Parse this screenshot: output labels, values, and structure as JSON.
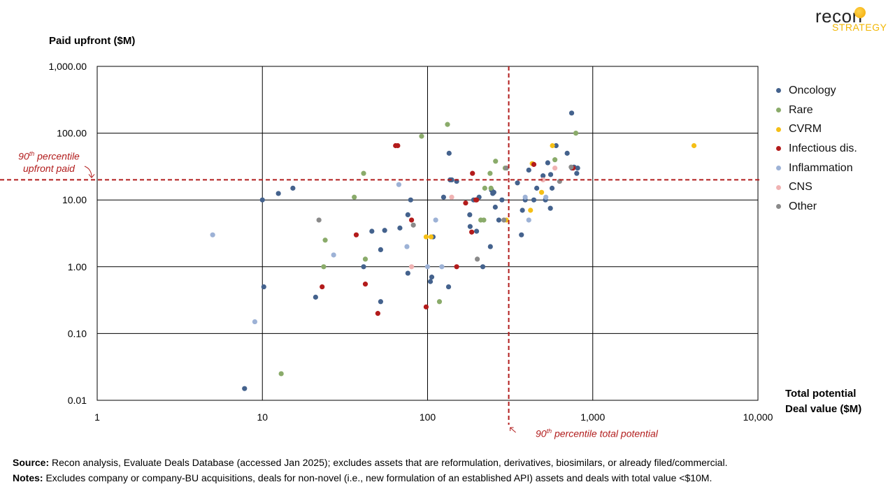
{
  "brand": {
    "top": "recon",
    "bottom": "STRATEGY"
  },
  "footer": {
    "source_label": "Source:",
    "source_text": " Recon analysis, Evaluate Deals Database (accessed Jan 2025); excludes assets that are reformulation, derivatives, biosimilars, or already filed/commercial.",
    "notes_label": "Notes:",
    "notes_text": " Excludes company or company-BU acquisitions, deals for non-novel (i.e., new formulation of an established API) assets and deals with total value <$10M."
  },
  "chart_data": {
    "type": "scatter",
    "ylabel": "Paid upfront ($M)",
    "xlabel": [
      "Total potential",
      "Deal value ($M)"
    ],
    "x_scale": "log",
    "y_scale": "log",
    "xlim": [
      1,
      10000
    ],
    "ylim": [
      0.01,
      1000
    ],
    "x_ticks": [
      1,
      10,
      100,
      1000,
      10000
    ],
    "x_tick_labels": [
      "1",
      "10",
      "100",
      "1,000",
      "10,000"
    ],
    "y_ticks": [
      0.01,
      0.1,
      1,
      10,
      100,
      1000
    ],
    "y_tick_labels": [
      "0.01",
      "0.10",
      "1.00",
      "10.00",
      "100.00",
      "1,000.00"
    ],
    "grid": true,
    "legend_position": "right",
    "reference_lines": [
      {
        "axis": "x",
        "value": 310,
        "label": [
          "90th percentile total potential"
        ],
        "color": "#b21d1d"
      },
      {
        "axis": "y",
        "value": 20,
        "label": [
          "90th percentile",
          "upfront paid"
        ],
        "color": "#b21d1d"
      }
    ],
    "series": [
      {
        "name": "Oncology",
        "color": "#44628d",
        "points": [
          [
            7.8,
            0.015
          ],
          [
            10,
            10
          ],
          [
            10.2,
            0.5
          ],
          [
            12.5,
            12.5
          ],
          [
            15.3,
            15
          ],
          [
            21,
            0.35
          ],
          [
            41,
            1
          ],
          [
            46,
            3.4
          ],
          [
            52,
            0.3
          ],
          [
            52,
            1.8
          ],
          [
            55,
            3.5
          ],
          [
            68,
            3.8
          ],
          [
            76,
            0.8
          ],
          [
            76,
            6
          ],
          [
            79,
            10
          ],
          [
            104,
            0.6
          ],
          [
            106,
            0.7
          ],
          [
            108,
            2.8
          ],
          [
            125,
            11
          ],
          [
            134,
            0.5
          ],
          [
            135,
            50
          ],
          [
            137,
            20
          ],
          [
            140,
            20
          ],
          [
            150,
            19
          ],
          [
            180,
            6
          ],
          [
            181,
            4
          ],
          [
            190,
            10
          ],
          [
            198,
            3.4
          ],
          [
            205,
            11
          ],
          [
            216,
            1
          ],
          [
            240,
            2
          ],
          [
            244,
            14
          ],
          [
            248,
            12.5
          ],
          [
            252,
            13
          ],
          [
            257,
            7.8
          ],
          [
            270,
            5
          ],
          [
            282,
            10
          ],
          [
            350,
            18
          ],
          [
            370,
            3
          ],
          [
            375,
            7
          ],
          [
            390,
            10
          ],
          [
            410,
            28
          ],
          [
            440,
            10
          ],
          [
            458,
            15
          ],
          [
            500,
            23
          ],
          [
            517,
            10
          ],
          [
            534,
            36
          ],
          [
            556,
            24
          ],
          [
            554,
            7.5
          ],
          [
            567,
            15
          ],
          [
            600,
            65
          ],
          [
            700,
            50
          ],
          [
            745,
            200
          ],
          [
            748,
            30
          ],
          [
            770,
            31
          ],
          [
            800,
            25
          ],
          [
            810,
            30
          ]
        ]
      },
      {
        "name": "Rare",
        "color": "#8aab6a",
        "points": [
          [
            13,
            0.025
          ],
          [
            24,
            2.5
          ],
          [
            23.5,
            1
          ],
          [
            36,
            11
          ],
          [
            41,
            25
          ],
          [
            42,
            1.3
          ],
          [
            92,
            90
          ],
          [
            118,
            0.3
          ],
          [
            132,
            135
          ],
          [
            210,
            5
          ],
          [
            219,
            5
          ],
          [
            222,
            15
          ],
          [
            239,
            25
          ],
          [
            242,
            15
          ],
          [
            258,
            38
          ],
          [
            295,
            30
          ],
          [
            590,
            40
          ],
          [
            790,
            100
          ]
        ]
      },
      {
        "name": "CVRM",
        "color": "#f5bf16",
        "points": [
          [
            98,
            2.8
          ],
          [
            105,
            2.8
          ],
          [
            300,
            5
          ],
          [
            420,
            7
          ],
          [
            430,
            35
          ],
          [
            490,
            13
          ],
          [
            570,
            65
          ],
          [
            4100,
            65
          ]
        ]
      },
      {
        "name": "Infectious dis.",
        "color": "#b31b1b",
        "points": [
          [
            23,
            0.5
          ],
          [
            37,
            3
          ],
          [
            42,
            0.55
          ],
          [
            50,
            0.2
          ],
          [
            64,
            65
          ],
          [
            66,
            65
          ],
          [
            80,
            5
          ],
          [
            98,
            0.25
          ],
          [
            150,
            1
          ],
          [
            170,
            9
          ],
          [
            185,
            3.3
          ],
          [
            187,
            25
          ],
          [
            196,
            10
          ],
          [
            198,
            10
          ],
          [
            440,
            34
          ],
          [
            760,
            30
          ]
        ]
      },
      {
        "name": "Inflammation",
        "color": "#9db2d6",
        "points": [
          [
            5,
            3
          ],
          [
            9,
            0.15
          ],
          [
            27,
            1.5
          ],
          [
            67,
            17
          ],
          [
            75,
            2
          ],
          [
            100,
            1
          ],
          [
            112,
            5
          ],
          [
            122,
            1
          ],
          [
            390,
            11
          ],
          [
            410,
            5
          ],
          [
            520,
            11
          ]
        ]
      },
      {
        "name": "CNS",
        "color": "#f0b3b3",
        "points": [
          [
            80,
            1
          ],
          [
            140,
            11
          ],
          [
            500,
            20
          ],
          [
            590,
            30
          ]
        ]
      },
      {
        "name": "Other",
        "color": "#8a8a8a",
        "points": [
          [
            22,
            5
          ],
          [
            82,
            4.2
          ],
          [
            200,
            1.3
          ],
          [
            290,
            5
          ],
          [
            300,
            30
          ],
          [
            630,
            19
          ],
          [
            740,
            31
          ]
        ]
      }
    ]
  }
}
